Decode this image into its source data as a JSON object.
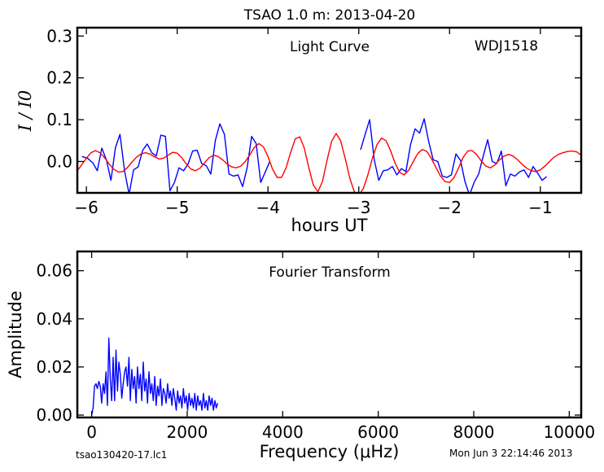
{
  "figure": {
    "title": "TSAO 1.0 m:  2013-04-20",
    "footer_left": "tsao130420-17.lc1",
    "footer_right": "Mon Jun  3 22:14:46 2013"
  },
  "chart_data": [
    {
      "type": "line",
      "id": "light-curve",
      "title": "",
      "annotations": [
        "Light Curve",
        "WDJ1518"
      ],
      "xlabel": "hours UT",
      "ylabel": "I / I0",
      "xlim": [
        -6.1,
        -0.55
      ],
      "ylim": [
        -0.075,
        0.32
      ],
      "xticks": [
        -6,
        -5,
        -4,
        -3,
        -2,
        -1
      ],
      "xtick_labels": [
        "−6",
        "−5",
        "−4",
        "−3",
        "−2",
        "−1"
      ],
      "yticks": [
        0.0,
        0.1,
        0.2,
        0.3
      ],
      "ytick_labels": [
        "0.0",
        "0.1",
        "0.2",
        "0.3"
      ],
      "grid": false,
      "series": [
        {
          "color": "#0000ff",
          "segments": [
            [
              [
                -6.05,
                0.012
              ],
              [
                -5.99,
                0.008
              ],
              [
                -5.93,
                -0.003
              ],
              [
                -5.88,
                -0.022
              ],
              [
                -5.83,
                0.032
              ],
              [
                -5.78,
                0.004
              ],
              [
                -5.73,
                -0.045
              ],
              [
                -5.68,
                0.033
              ],
              [
                -5.63,
                0.065
              ],
              [
                -5.58,
                -0.022
              ],
              [
                -5.53,
                -0.078
              ],
              [
                -5.48,
                -0.02
              ],
              [
                -5.43,
                -0.013
              ],
              [
                -5.38,
                0.027
              ],
              [
                -5.33,
                0.042
              ],
              [
                -5.28,
                0.021
              ],
              [
                -5.23,
                0.013
              ],
              [
                -5.18,
                0.063
              ],
              [
                -5.13,
                0.06
              ],
              [
                -5.08,
                -0.07
              ],
              [
                -5.03,
                -0.05
              ],
              [
                -4.98,
                -0.015
              ],
              [
                -4.93,
                -0.022
              ],
              [
                -4.88,
                -0.006
              ],
              [
                -4.83,
                0.025
              ],
              [
                -4.78,
                0.027
              ],
              [
                -4.73,
                -0.005
              ],
              [
                -4.68,
                -0.01
              ],
              [
                -4.63,
                -0.03
              ],
              [
                -4.58,
                0.05
              ],
              [
                -4.53,
                0.09
              ],
              [
                -4.48,
                0.065
              ],
              [
                -4.43,
                -0.03
              ],
              [
                -4.38,
                -0.035
              ],
              [
                -4.33,
                -0.032
              ],
              [
                -4.28,
                -0.06
              ],
              [
                -4.23,
                -0.015
              ],
              [
                -4.18,
                0.06
              ],
              [
                -4.13,
                0.043
              ],
              [
                -4.08,
                -0.05
              ],
              [
                -4.03,
                -0.025
              ],
              [
                -3.98,
                0.0
              ]
            ],
            [
              [
                -2.98,
                0.028
              ],
              [
                -2.93,
                0.065
              ],
              [
                -2.88,
                0.1
              ],
              [
                -2.83,
                0.005
              ],
              [
                -2.78,
                -0.045
              ],
              [
                -2.73,
                -0.022
              ],
              [
                -2.68,
                -0.02
              ],
              [
                -2.63,
                -0.012
              ],
              [
                -2.58,
                -0.032
              ],
              [
                -2.53,
                -0.017
              ],
              [
                -2.48,
                -0.024
              ],
              [
                -2.43,
                0.04
              ],
              [
                -2.38,
                0.078
              ],
              [
                -2.33,
                0.068
              ],
              [
                -2.28,
                0.102
              ],
              [
                -2.23,
                0.048
              ],
              [
                -2.18,
                0.004
              ],
              [
                -2.13,
                0.0
              ],
              [
                -2.08,
                -0.035
              ],
              [
                -2.03,
                -0.038
              ],
              [
                -1.98,
                -0.032
              ],
              [
                -1.93,
                0.018
              ],
              [
                -1.88,
                0.003
              ],
              [
                -1.83,
                -0.048
              ],
              [
                -1.78,
                -0.08
              ],
              [
                -1.73,
                -0.05
              ],
              [
                -1.68,
                -0.03
              ],
              [
                -1.63,
                0.012
              ],
              [
                -1.58,
                0.052
              ],
              [
                -1.53,
                0.0
              ],
              [
                -1.48,
                -0.005
              ],
              [
                -1.43,
                0.025
              ],
              [
                -1.38,
                -0.058
              ],
              [
                -1.33,
                -0.03
              ],
              [
                -1.28,
                -0.035
              ],
              [
                -1.23,
                -0.025
              ],
              [
                -1.18,
                -0.02
              ],
              [
                -1.13,
                -0.038
              ],
              [
                -1.08,
                -0.012
              ],
              [
                -1.03,
                -0.028
              ],
              [
                -0.98,
                -0.045
              ],
              [
                -0.93,
                -0.036
              ]
            ]
          ]
        },
        {
          "color": "#ff0000",
          "x": [
            -6.1,
            -6.05,
            -6.0,
            -5.95,
            -5.9,
            -5.85,
            -5.8,
            -5.75,
            -5.7,
            -5.65,
            -5.6,
            -5.55,
            -5.5,
            -5.45,
            -5.4,
            -5.35,
            -5.3,
            -5.25,
            -5.2,
            -5.15,
            -5.1,
            -5.05,
            -5.0,
            -4.95,
            -4.9,
            -4.85,
            -4.8,
            -4.75,
            -4.7,
            -4.65,
            -4.6,
            -4.55,
            -4.5,
            -4.45,
            -4.4,
            -4.35,
            -4.3,
            -4.25,
            -4.2,
            -4.15,
            -4.1,
            -4.05,
            -4.0,
            -3.95,
            -3.9,
            -3.85,
            -3.8,
            -3.75,
            -3.7,
            -3.65,
            -3.6,
            -3.55,
            -3.5,
            -3.45,
            -3.4,
            -3.35,
            -3.3,
            -3.25,
            -3.2,
            -3.15,
            -3.1,
            -3.05,
            -3.0,
            -2.95,
            -2.9,
            -2.85,
            -2.8,
            -2.75,
            -2.7,
            -2.65,
            -2.6,
            -2.55,
            -2.5,
            -2.45,
            -2.4,
            -2.35,
            -2.3,
            -2.25,
            -2.2,
            -2.15,
            -2.1,
            -2.05,
            -2.0,
            -1.95,
            -1.9,
            -1.85,
            -1.8,
            -1.75,
            -1.7,
            -1.65,
            -1.6,
            -1.55,
            -1.5,
            -1.45,
            -1.4,
            -1.35,
            -1.3,
            -1.25,
            -1.2,
            -1.15,
            -1.1,
            -1.05,
            -1.0,
            -0.95,
            -0.9,
            -0.85,
            -0.8,
            -0.75,
            -0.7,
            -0.65,
            -0.6,
            -0.55
          ],
          "values": [
            -0.022,
            -0.007,
            0.008,
            0.021,
            0.026,
            0.021,
            0.009,
            -0.006,
            -0.018,
            -0.025,
            -0.024,
            -0.015,
            -0.002,
            0.01,
            0.018,
            0.021,
            0.018,
            0.011,
            0.006,
            0.008,
            0.015,
            0.022,
            0.02,
            0.009,
            -0.006,
            -0.018,
            -0.022,
            -0.016,
            -0.004,
            0.009,
            0.015,
            0.012,
            0.004,
            -0.006,
            -0.013,
            -0.015,
            -0.011,
            0.0,
            0.016,
            0.034,
            0.043,
            0.035,
            0.012,
            -0.018,
            -0.038,
            -0.038,
            -0.015,
            0.022,
            0.054,
            0.059,
            0.032,
            -0.015,
            -0.057,
            -0.072,
            -0.048,
            0.002,
            0.048,
            0.067,
            0.05,
            0.008,
            -0.039,
            -0.072,
            -0.08,
            -0.065,
            -0.032,
            0.008,
            0.04,
            0.056,
            0.05,
            0.026,
            -0.004,
            -0.026,
            -0.032,
            -0.021,
            0.0,
            0.019,
            0.029,
            0.024,
            0.007,
            -0.014,
            -0.035,
            -0.048,
            -0.05,
            -0.038,
            -0.015,
            0.01,
            0.025,
            0.026,
            0.016,
            0.001,
            -0.011,
            -0.015,
            -0.008,
            0.004,
            0.013,
            0.017,
            0.013,
            0.004,
            -0.007,
            -0.016,
            -0.022,
            -0.024,
            -0.02,
            -0.011,
            0.0,
            0.01,
            0.017,
            0.021,
            0.024,
            0.025,
            0.023,
            0.015
          ]
        }
      ]
    },
    {
      "type": "line",
      "id": "fourier-transform",
      "title": "",
      "annotations": [
        "Fourier Transform"
      ],
      "xlabel": "Frequency (μHz)",
      "ylabel": "Amplitude",
      "xlim": [
        -300,
        10250
      ],
      "ylim": [
        -0.001,
        0.068
      ],
      "xticks": [
        0,
        2000,
        4000,
        6000,
        8000,
        10000
      ],
      "xtick_labels": [
        "0",
        "2000",
        "4000",
        "6000",
        "8000",
        "10000"
      ],
      "yticks": [
        0.0,
        0.02,
        0.04,
        0.06
      ],
      "ytick_labels": [
        "0.00",
        "0.02",
        "0.04",
        "0.06"
      ],
      "grid": false,
      "series": [
        {
          "color": "#0000ff",
          "x": [
            0,
            30,
            60,
            90,
            120,
            150,
            180,
            210,
            240,
            270,
            300,
            330,
            360,
            390,
            420,
            450,
            480,
            510,
            540,
            570,
            600,
            630,
            660,
            690,
            720,
            750,
            780,
            810,
            840,
            870,
            900,
            930,
            960,
            990,
            1020,
            1050,
            1080,
            1110,
            1140,
            1170,
            1200,
            1230,
            1260,
            1290,
            1320,
            1350,
            1380,
            1410,
            1440,
            1470,
            1500,
            1530,
            1560,
            1590,
            1620,
            1650,
            1680,
            1710,
            1740,
            1770,
            1800,
            1830,
            1860,
            1890,
            1920,
            1950,
            1980,
            2010,
            2040,
            2070,
            2100,
            2130,
            2160,
            2190,
            2220,
            2250,
            2280,
            2310,
            2340,
            2370,
            2400,
            2430,
            2460,
            2490,
            2520,
            2550,
            2580,
            2610,
            2640
          ],
          "values": [
            0.0,
            0.003,
            0.012,
            0.013,
            0.011,
            0.014,
            0.012,
            0.005,
            0.013,
            0.009,
            0.018,
            0.004,
            0.032,
            0.015,
            0.006,
            0.024,
            0.006,
            0.027,
            0.01,
            0.022,
            0.017,
            0.007,
            0.013,
            0.018,
            0.02,
            0.012,
            0.024,
            0.006,
            0.019,
            0.011,
            0.016,
            0.005,
            0.02,
            0.011,
            0.017,
            0.006,
            0.022,
            0.01,
            0.015,
            0.005,
            0.018,
            0.009,
            0.013,
            0.006,
            0.016,
            0.004,
            0.012,
            0.008,
            0.015,
            0.004,
            0.011,
            0.009,
            0.005,
            0.013,
            0.007,
            0.01,
            0.004,
            0.011,
            0.007,
            0.002,
            0.01,
            0.005,
            0.008,
            0.003,
            0.011,
            0.005,
            0.008,
            0.002,
            0.009,
            0.004,
            0.007,
            0.003,
            0.009,
            0.002,
            0.008,
            0.004,
            0.006,
            0.002,
            0.009,
            0.003,
            0.006,
            0.002,
            0.008,
            0.004,
            0.007,
            0.002,
            0.006,
            0.003,
            0.005
          ]
        }
      ]
    }
  ]
}
